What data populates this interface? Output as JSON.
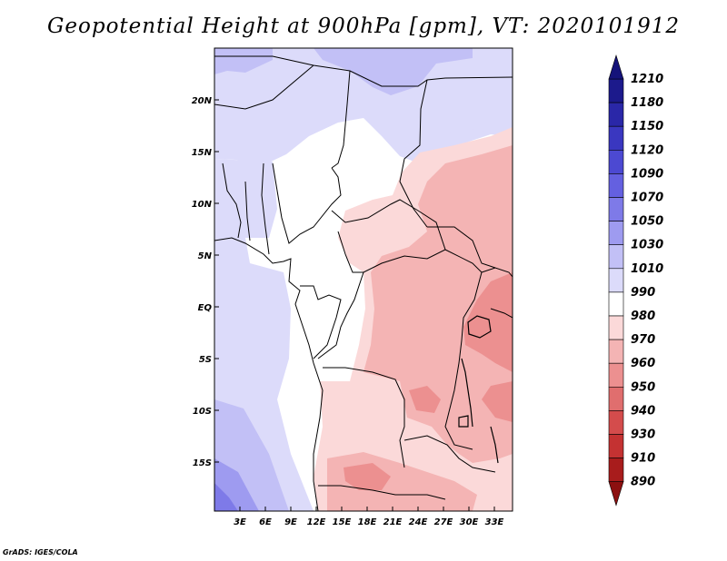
{
  "title": "Geopotential Height at 900hPa [gpm], VT: 2020101912",
  "credit": "GrADS: IGES/COLA",
  "map": {
    "lat_labels": [
      "20N",
      "15N",
      "10N",
      "5N",
      "EQ",
      "5S",
      "10S",
      "15S"
    ],
    "lon_labels": [
      "3E",
      "6E",
      "9E",
      "12E",
      "15E",
      "18E",
      "21E",
      "24E",
      "27E",
      "30E",
      "33E"
    ]
  },
  "colorbar": {
    "levels": [
      "1210",
      "1180",
      "1150",
      "1120",
      "1090",
      "1070",
      "1050",
      "1030",
      "1010",
      "990",
      "980",
      "970",
      "960",
      "950",
      "940",
      "930",
      "910",
      "890"
    ],
    "colors": [
      "#1c1a8c",
      "#2a27a8",
      "#3a37c0",
      "#4c49d2",
      "#6460e0",
      "#7e7ae8",
      "#9e9bf0",
      "#c2c0f6",
      "#dcdbfa",
      "#ffffff",
      "#fbd9d9",
      "#f4b4b4",
      "#ec9090",
      "#e06e6e",
      "#d44c4c",
      "#c43232",
      "#a81c1c"
    ]
  }
}
